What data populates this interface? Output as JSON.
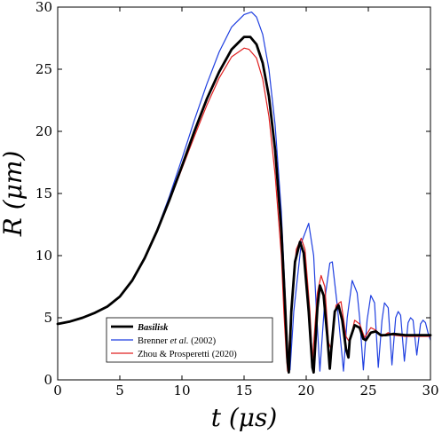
{
  "chart_data": {
    "type": "line",
    "xlabel": "t (μs)",
    "ylabel": "R (μm)",
    "xlim": [
      0,
      30
    ],
    "ylim": [
      0,
      30
    ],
    "xticks": [
      "0",
      "5",
      "10",
      "15",
      "20",
      "25",
      "30"
    ],
    "yticks": [
      "0",
      "5",
      "10",
      "15",
      "20",
      "25",
      "30"
    ],
    "grid": false,
    "legend_position": "bottom-left",
    "legend": [
      {
        "rich": true,
        "parts": [
          {
            "t": "Basilisk",
            "i": true
          }
        ]
      },
      {
        "rich": true,
        "parts": [
          {
            "t": "Brenner ",
            "i": false
          },
          {
            "t": "et al.",
            "i": true
          },
          {
            "t": " (2002)",
            "i": false
          }
        ]
      },
      {
        "rich": true,
        "parts": [
          {
            "t": "Zhou & Prosperetti (2020)",
            "i": false
          }
        ]
      }
    ],
    "series": [
      {
        "name": "Basilisk",
        "color": "#000000",
        "line_width": 2.8,
        "x": [
          0,
          1,
          2,
          3,
          4,
          5,
          6,
          7,
          8,
          9,
          10,
          11,
          12,
          13,
          14,
          15,
          15.5,
          16,
          16.5,
          17,
          17.5,
          18,
          18.3,
          18.5,
          18.6,
          18.8,
          19.1,
          19.5,
          19.8,
          20.2,
          20.5,
          20.6,
          20.9,
          21.1,
          21.4,
          21.7,
          21.9,
          22.0,
          22.3,
          22.6,
          22.9,
          23.2,
          23.4,
          23.5,
          23.9,
          24.3,
          24.6,
          24.8,
          25.2,
          25.6,
          26.0,
          26.4,
          27.0,
          28.0,
          29.0,
          30.0
        ],
        "y": [
          4.5,
          4.7,
          5.0,
          5.4,
          5.9,
          6.7,
          8.0,
          9.8,
          12.0,
          14.5,
          17.2,
          20.0,
          22.6,
          24.8,
          26.6,
          27.6,
          27.6,
          27.0,
          25.5,
          22.8,
          18.5,
          12.0,
          6.0,
          1.5,
          0.6,
          5.5,
          9.5,
          11.1,
          10.2,
          5.5,
          1.0,
          0.6,
          5.8,
          7.6,
          6.8,
          3.5,
          0.9,
          2.2,
          5.5,
          6.0,
          4.8,
          2.5,
          1.8,
          3.2,
          4.4,
          4.2,
          3.3,
          3.2,
          3.8,
          3.9,
          3.6,
          3.6,
          3.7,
          3.6,
          3.6,
          3.6
        ]
      },
      {
        "name": "Brenner et al. (2002)",
        "color": "#1f3fe0",
        "line_width": 1.2,
        "x": [
          0,
          1,
          2,
          3,
          4,
          5,
          6,
          7,
          8,
          9,
          10,
          11,
          12,
          13,
          14,
          15,
          15.6,
          16,
          16.5,
          17,
          17.5,
          18,
          18.3,
          18.5,
          18.7,
          19.0,
          19.6,
          20.2,
          20.6,
          20.8,
          21.1,
          21.5,
          21.9,
          22.1,
          22.5,
          23.0,
          23.3,
          23.7,
          24.1,
          24.3,
          24.6,
          24.9,
          25.2,
          25.5,
          25.8,
          26.1,
          26.3,
          26.6,
          26.9,
          27.2,
          27.4,
          27.6,
          27.9,
          28.2,
          28.4,
          28.6,
          28.9,
          29.2,
          29.4,
          29.6,
          29.8,
          30.0
        ],
        "y": [
          4.5,
          4.7,
          5.0,
          5.4,
          5.9,
          6.7,
          8.0,
          9.8,
          12.1,
          14.8,
          17.8,
          20.9,
          23.8,
          26.4,
          28.4,
          29.4,
          29.6,
          29.2,
          27.8,
          25.0,
          20.5,
          13.5,
          7.0,
          2.0,
          0.8,
          5.5,
          11.0,
          12.6,
          10.0,
          6.0,
          0.7,
          6.5,
          9.4,
          9.5,
          6.0,
          0.7,
          5.0,
          8.0,
          7.0,
          5.0,
          0.8,
          4.8,
          6.8,
          6.2,
          1.0,
          4.8,
          6.2,
          5.8,
          1.2,
          5.0,
          5.5,
          5.2,
          1.5,
          4.6,
          5.0,
          4.8,
          2.0,
          4.5,
          4.8,
          4.6,
          3.8,
          3.2
        ]
      },
      {
        "name": "Zhou & Prosperetti (2020)",
        "color": "#e02020",
        "line_width": 1.2,
        "x": [
          0,
          1,
          2,
          3,
          4,
          5,
          6,
          7,
          8,
          9,
          10,
          11,
          12,
          13,
          14,
          15,
          15.4,
          16,
          16.5,
          17,
          17.5,
          18,
          18.2,
          18.4,
          18.5,
          18.8,
          19.2,
          19.6,
          19.9,
          20.3,
          20.5,
          20.9,
          21.2,
          21.5,
          21.8,
          22.0,
          22.4,
          22.8,
          23.2,
          23.5,
          23.9,
          24.3,
          24.7,
          25.2,
          25.6,
          26.1,
          26.6,
          27.0,
          28.0,
          29.0,
          30.0
        ],
        "y": [
          4.5,
          4.7,
          5.0,
          5.4,
          5.9,
          6.7,
          8.0,
          9.7,
          11.9,
          14.4,
          17.0,
          19.6,
          22.1,
          24.3,
          26.0,
          26.7,
          26.6,
          25.9,
          24.2,
          21.2,
          16.5,
          10.0,
          5.5,
          2.0,
          0.7,
          5.8,
          10.5,
          11.4,
          10.5,
          5.5,
          1.5,
          7.0,
          8.4,
          7.5,
          3.0,
          2.5,
          6.0,
          6.3,
          3.5,
          3.0,
          4.8,
          4.5,
          3.4,
          4.2,
          4.0,
          3.5,
          3.8,
          3.6,
          3.5,
          3.5,
          3.5
        ]
      }
    ]
  }
}
